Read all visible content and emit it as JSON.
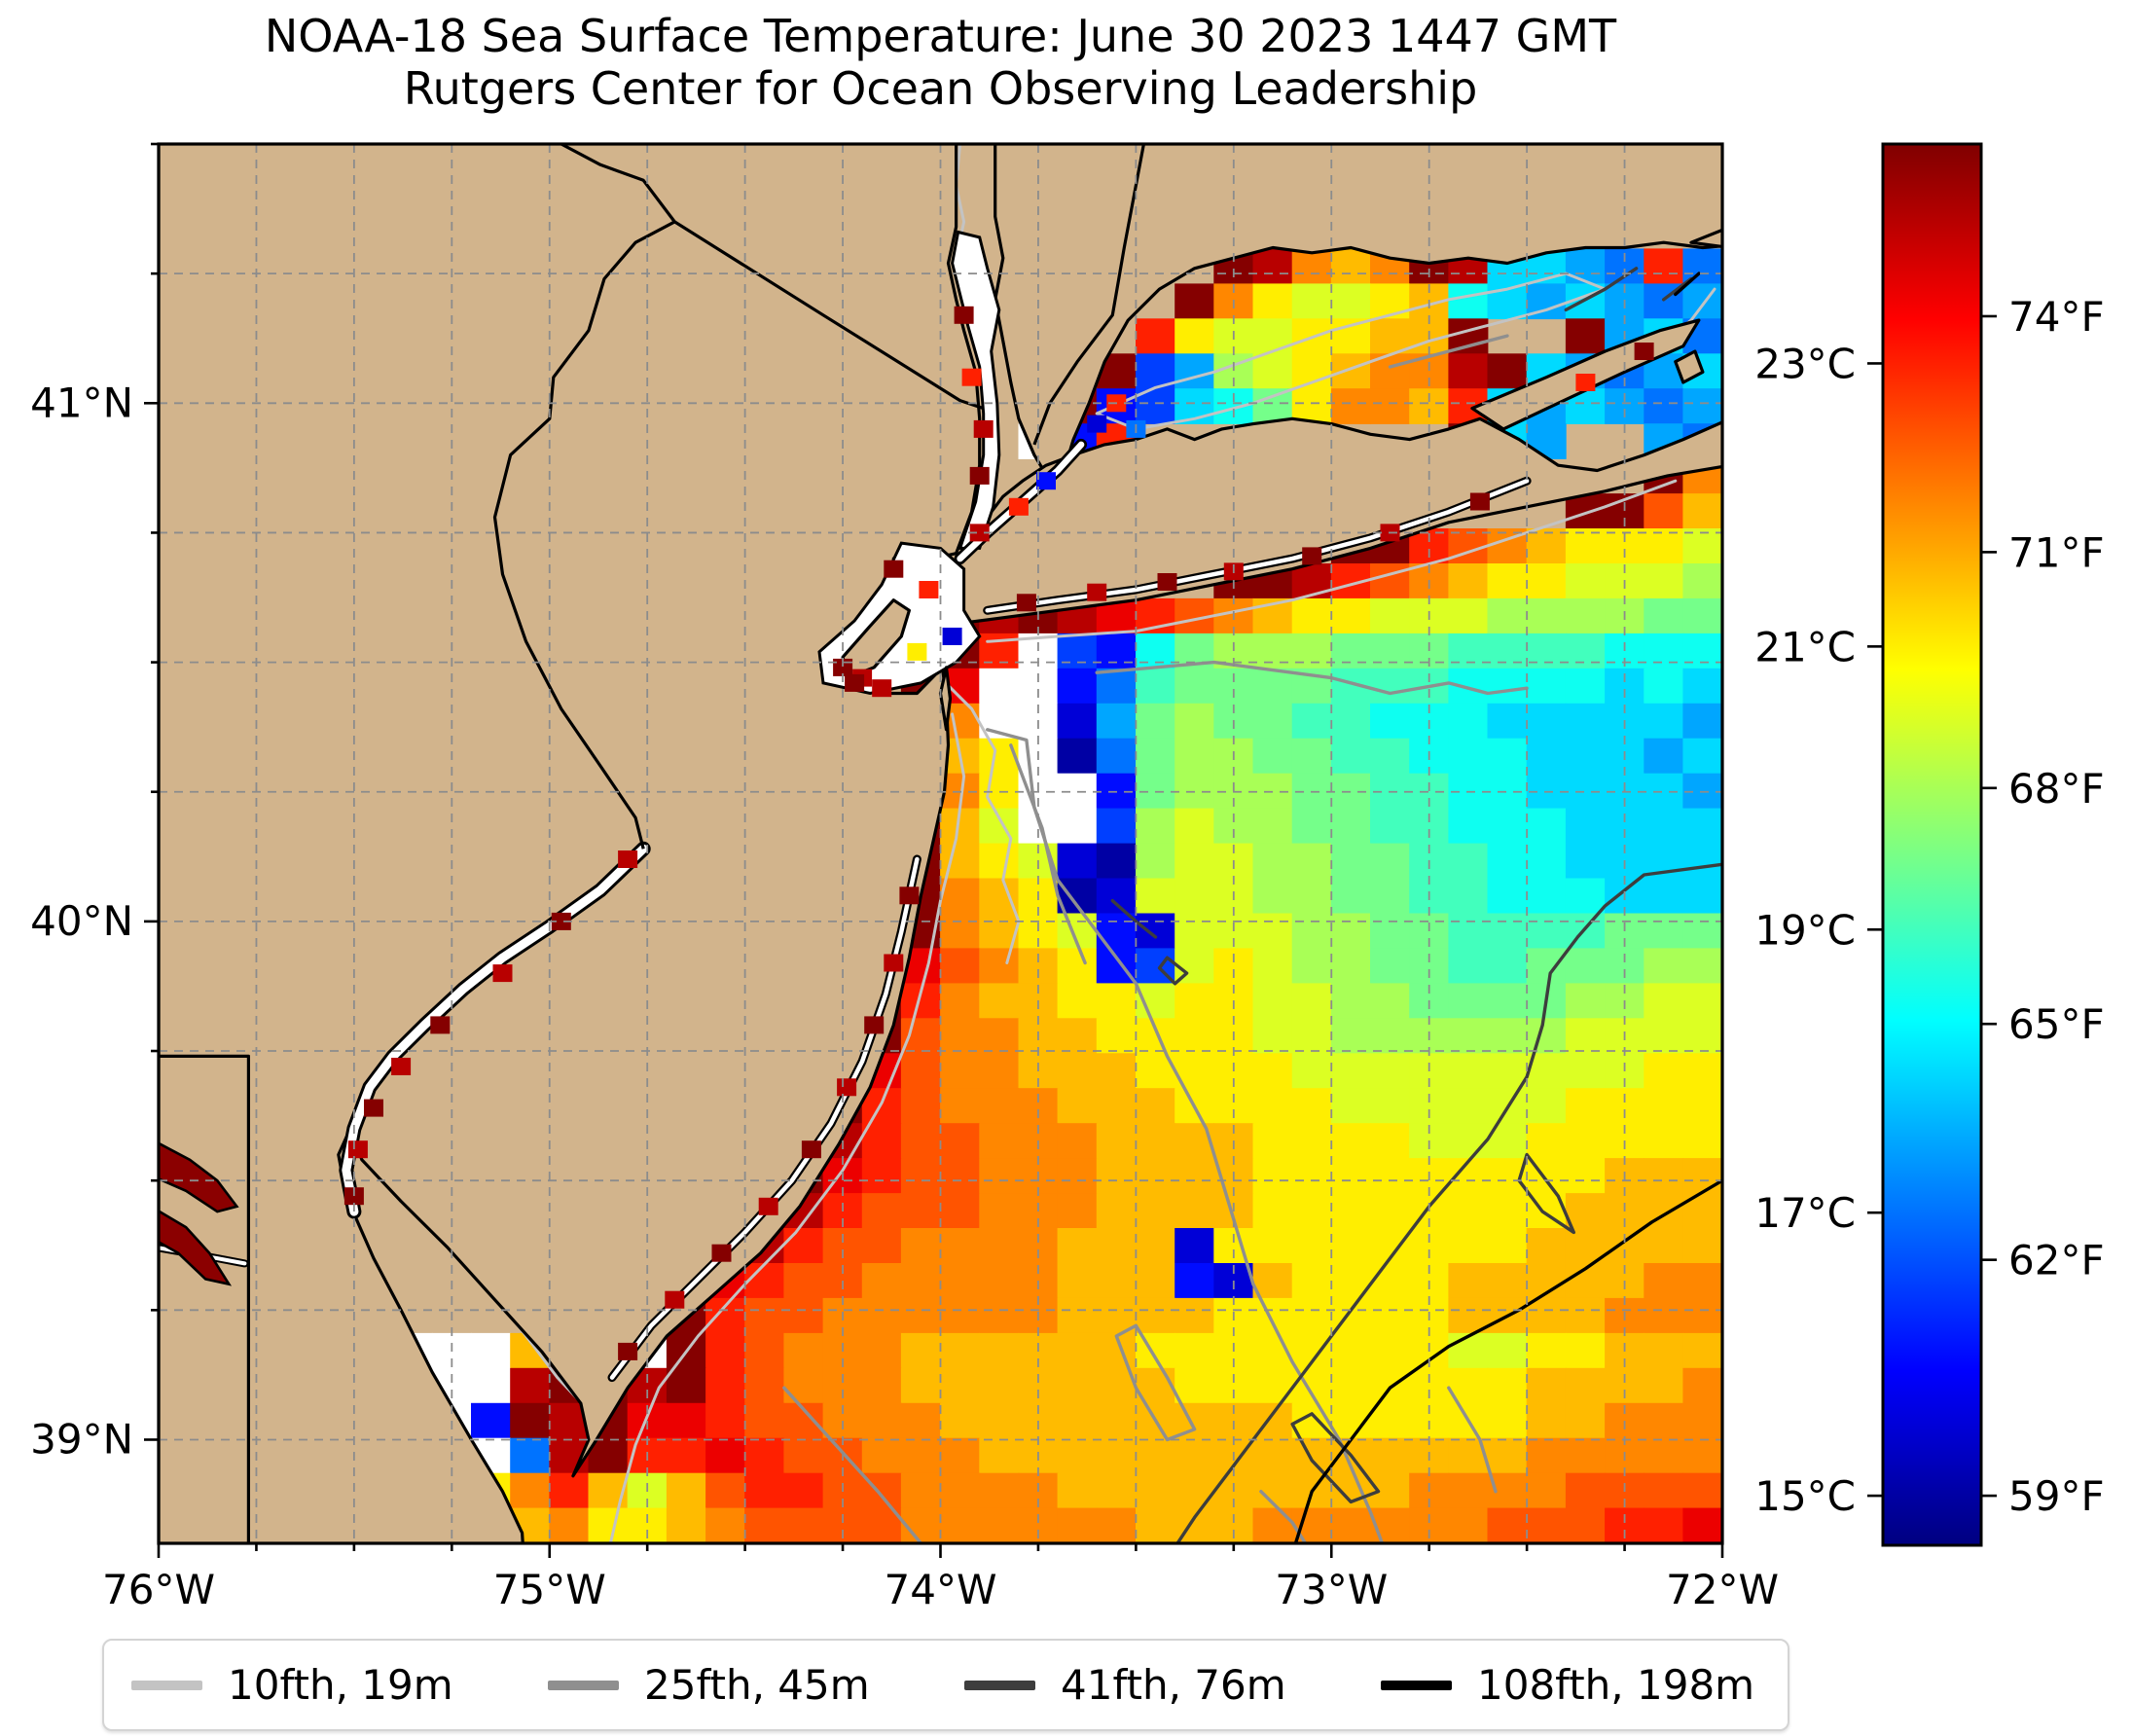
{
  "title": {
    "line1": "NOAA-18 Sea Surface Temperature: June 30 2023 1447 GMT",
    "line2": "Rutgers Center for Ocean Observing Leadership"
  },
  "axes": {
    "x_ticks": [
      {
        "label": "76°W",
        "lon": -76
      },
      {
        "label": "75°W",
        "lon": -75
      },
      {
        "label": "74°W",
        "lon": -74
      },
      {
        "label": "73°W",
        "lon": -73
      },
      {
        "label": "72°W",
        "lon": -72
      }
    ],
    "y_ticks": [
      {
        "label": "41°N",
        "lat": 41
      },
      {
        "label": "40°N",
        "lat": 40
      },
      {
        "label": "39°N",
        "lat": 39
      }
    ],
    "lon_range": [
      -76,
      -72
    ],
    "lat_range": [
      38.8,
      41.5
    ],
    "grid_step_deg": 0.25
  },
  "colorbar": {
    "cmin_c": 14.65,
    "cmax_c": 24.55,
    "ticks_c": [
      {
        "label": "23°C",
        "value": 23
      },
      {
        "label": "21°C",
        "value": 21
      },
      {
        "label": "19°C",
        "value": 19
      },
      {
        "label": "17°C",
        "value": 17
      },
      {
        "label": "15°C",
        "value": 15
      }
    ],
    "ticks_f": [
      {
        "label": "74°F",
        "value": 74
      },
      {
        "label": "71°F",
        "value": 71
      },
      {
        "label": "68°F",
        "value": 68
      },
      {
        "label": "65°F",
        "value": 65
      },
      {
        "label": "62°F",
        "value": 62
      },
      {
        "label": "59°F",
        "value": 59
      }
    ]
  },
  "legend": {
    "items": [
      {
        "label": "10fth, 19m",
        "color": "#c3c3c3"
      },
      {
        "label": "25fth, 45m",
        "color": "#8f8f8f"
      },
      {
        "label": "41fth, 76m",
        "color": "#3d3d3d"
      },
      {
        "label": "108fth, 198m",
        "color": "#000000"
      }
    ]
  },
  "colors": {
    "land": "#d2b48c",
    "no_data": "#ffffff",
    "coastline": "#000000",
    "graticule": "#8c8c8c"
  },
  "chart_data": {
    "type": "heatmap",
    "title": "NOAA-18 Sea Surface Temperature: June 30 2023 1447 GMT",
    "units": "°C (left colorbar) / °F (right colorbar)",
    "value_range_c": [
      14.65,
      24.55
    ],
    "grid": {
      "cols": 40,
      "rows": 40,
      "lon0": -76.0,
      "dlon": 0.1,
      "lat0": 41.5,
      "dlat": 0.0675,
      "encoding": {
        "#": "land",
        ".": "no-data (cloud/white)",
        "a..t": "SST 15.0°C to 24.5°C in 0.5°C steps"
      },
      "rows_data": [
        "###################.####################",
        "###################.####################",
        "###################.####################",
        "###################.#######tsonotsggfeqe",
        "###################.######tomllmnhgfgfef",
        "###################.#####qmllmmnnt##tfge",
        "###################.####tdfklmnoostgfefg",
        "###################.###tcdghjmoonqgfgfef",
        "###################.##.cq########tgf##fe",
        "###################.##################to",
        "###################.################ttpn",
        "###################.##########ttqponmmml",
        "###################.#######ttsqponmmlllk",
        "###################.tstsrqponmmlllkkkkjj",
        "#################.s.tq.dchjkkkjjjiiiihhh",
        "###################tr..ceijjjjiiihhhhghg",
        "###################to..bfjkjjiihhhgggggf",
        "###################tnm.aejkkjjiihhhgggfg",
        "###################tom..cjkkkjjiihhggggf",
        "###################tnl..dklkkjjiihhhgggg",
        "###################tnmlbakllkkjjiihhgggg",
        "###################tonmablllkkjjiihhhggg",
        "###################tonmlcblllkkjjiiiijjj",
        "###################rponmcdlmlkkjjiijjjkk",
        "##################tqonnmmlmmllkkjjjjkkll",
        "##################tpoonnmmmmllkkkkkkllll",
        "#################trpoonnnmmmmlllllllllmm",
        "#################tqpooonnnmmmmllllllmmmm",
        "################tsqppooonnnnmmmmlllmmmmm",
        "################trqppooonnnnmmmmmmmmmnnn",
        "###############tsqpppooonnnnmmmmmmmmnnnn",
        "##########....tsqppoooonnnbmmmmmmmmnnnnn",
        "##########...trqppooooonnncbnmmmmnnnnnoo",
        "##########...tqppoooooonnnnmmmmmmnnnnooo",
        "######...nts.tqpooonnnnnnmmmmmmmmllmmnnn",
        "#####....sttstqpooonnnnnnnmmmmmmmmmnnnno",
        "#####...ctstrrqppooonnnnnnnnnmmmmmmnnooo",
        "####..cf.estqqrqppooonnnnnnnnnnnnnnooooo",
        "####t.egmoqnlnpqqppoooonnnnnnnnnoooopppp",
        "####.fhlmnommnoppppoooooonnnoooooopppqqr"
      ]
    },
    "speckles": [
      [
        -75.5,
        39.47,
        "t"
      ],
      [
        -75.49,
        39.56,
        "s"
      ],
      [
        -75.45,
        39.64,
        "t"
      ],
      [
        -75.38,
        39.72,
        "s"
      ],
      [
        -75.28,
        39.8,
        "t"
      ],
      [
        -75.12,
        39.9,
        "s"
      ],
      [
        -74.97,
        40.0,
        "t"
      ],
      [
        -74.8,
        40.12,
        "s"
      ],
      [
        -73.9,
        40.86,
        "t"
      ],
      [
        -73.89,
        40.95,
        "s"
      ],
      [
        -73.92,
        41.05,
        "q"
      ],
      [
        -73.94,
        41.17,
        "t"
      ],
      [
        -73.9,
        40.75,
        "s"
      ],
      [
        -74.03,
        40.64,
        "q"
      ],
      [
        -74.12,
        40.68,
        "t"
      ],
      [
        -73.97,
        40.55,
        "b"
      ],
      [
        -74.06,
        40.52,
        "m"
      ],
      [
        -74.25,
        40.49,
        "t"
      ],
      [
        -74.2,
        40.47,
        "s"
      ],
      [
        -74.22,
        40.46,
        "t"
      ],
      [
        -74.15,
        40.45,
        "s"
      ],
      [
        -73.6,
        40.96,
        "b"
      ],
      [
        -73.55,
        41.0,
        "q"
      ],
      [
        -73.5,
        40.95,
        "e"
      ],
      [
        -73.78,
        40.615,
        "t"
      ],
      [
        -73.6,
        40.635,
        "s"
      ],
      [
        -73.42,
        40.655,
        "t"
      ],
      [
        -73.25,
        40.675,
        "s"
      ],
      [
        -73.05,
        40.705,
        "t"
      ],
      [
        -72.85,
        40.75,
        "s"
      ],
      [
        -72.62,
        40.81,
        "t"
      ],
      [
        -74.08,
        40.05,
        "t"
      ],
      [
        -74.12,
        39.92,
        "s"
      ],
      [
        -74.17,
        39.8,
        "t"
      ],
      [
        -74.24,
        39.68,
        "s"
      ],
      [
        -74.33,
        39.56,
        "t"
      ],
      [
        -74.44,
        39.45,
        "s"
      ],
      [
        -74.56,
        39.36,
        "t"
      ],
      [
        -74.68,
        39.27,
        "s"
      ],
      [
        -74.8,
        39.17,
        "t"
      ],
      [
        -72.35,
        41.04,
        "q"
      ],
      [
        -72.2,
        41.1,
        "t"
      ],
      [
        -73.8,
        40.8,
        "q"
      ],
      [
        -73.73,
        40.85,
        "c"
      ]
    ]
  }
}
